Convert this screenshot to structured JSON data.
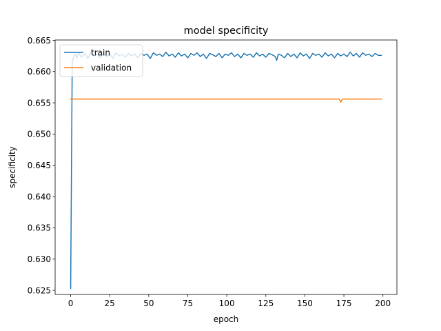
{
  "chart_data": {
    "type": "line",
    "title": "model specificity",
    "xlabel": "epoch",
    "ylabel": "specificity",
    "xlim": [
      -9.95,
      208.95
    ],
    "ylim": [
      0.62435,
      0.66505
    ],
    "xticks": [
      0,
      25,
      50,
      75,
      100,
      125,
      150,
      175,
      200
    ],
    "yticks": [
      0.625,
      0.63,
      0.635,
      0.64,
      0.645,
      0.65,
      0.655,
      0.66,
      0.665
    ],
    "ytick_labels": [
      "0.625",
      "0.630",
      "0.635",
      "0.640",
      "0.645",
      "0.650",
      "0.655",
      "0.660",
      "0.665"
    ],
    "legend_position": "top-left",
    "grid": false,
    "series": [
      {
        "name": "train",
        "color": "#1f77b4",
        "x": [
          0,
          1,
          2,
          3,
          4,
          5,
          7,
          9,
          11,
          13,
          15,
          17,
          19,
          21,
          23,
          25,
          27,
          29,
          31,
          33,
          35,
          37,
          39,
          41,
          43,
          45,
          47,
          49,
          51,
          53,
          55,
          57,
          59,
          61,
          63,
          65,
          67,
          69,
          71,
          73,
          75,
          77,
          79,
          81,
          83,
          85,
          87,
          89,
          91,
          93,
          95,
          97,
          99,
          101,
          103,
          105,
          107,
          109,
          111,
          113,
          115,
          117,
          119,
          121,
          123,
          125,
          127,
          129,
          131,
          132,
          133,
          135,
          137,
          139,
          141,
          143,
          145,
          147,
          149,
          151,
          153,
          155,
          157,
          159,
          161,
          163,
          165,
          167,
          169,
          171,
          173,
          175,
          177,
          179,
          181,
          183,
          185,
          187,
          189,
          191,
          193,
          195,
          197,
          199
        ],
        "values": [
          0.6253,
          0.6615,
          0.6625,
          0.6628,
          0.6622,
          0.663,
          0.6623,
          0.6629,
          0.6621,
          0.6631,
          0.6625,
          0.6628,
          0.6622,
          0.6629,
          0.6624,
          0.6628,
          0.6621,
          0.663,
          0.6625,
          0.6628,
          0.6623,
          0.6629,
          0.6625,
          0.6628,
          0.6622,
          0.6629,
          0.6626,
          0.6628,
          0.6621,
          0.663,
          0.6626,
          0.6628,
          0.6624,
          0.6631,
          0.6625,
          0.6628,
          0.6623,
          0.663,
          0.6625,
          0.6628,
          0.6622,
          0.6629,
          0.6626,
          0.663,
          0.6624,
          0.6628,
          0.6621,
          0.6629,
          0.6627,
          0.6624,
          0.6629,
          0.6622,
          0.6628,
          0.6626,
          0.663,
          0.6624,
          0.6628,
          0.6622,
          0.6629,
          0.6626,
          0.6628,
          0.6623,
          0.663,
          0.6625,
          0.6628,
          0.6623,
          0.6629,
          0.6627,
          0.6624,
          0.6618,
          0.6628,
          0.6626,
          0.6622,
          0.6629,
          0.6624,
          0.6628,
          0.6622,
          0.663,
          0.6625,
          0.6628,
          0.6621,
          0.6629,
          0.6626,
          0.6628,
          0.6623,
          0.663,
          0.6625,
          0.6628,
          0.6622,
          0.6629,
          0.6625,
          0.6628,
          0.6624,
          0.6631,
          0.6625,
          0.6629,
          0.6623,
          0.663,
          0.6626,
          0.6628,
          0.6624,
          0.6629,
          0.6626,
          0.6626
        ]
      },
      {
        "name": "validation",
        "color": "#ff7f0e",
        "x": [
          0,
          172,
          173,
          174,
          199
        ],
        "values": [
          0.6556,
          0.6556,
          0.6551,
          0.6556,
          0.6556
        ]
      }
    ]
  }
}
